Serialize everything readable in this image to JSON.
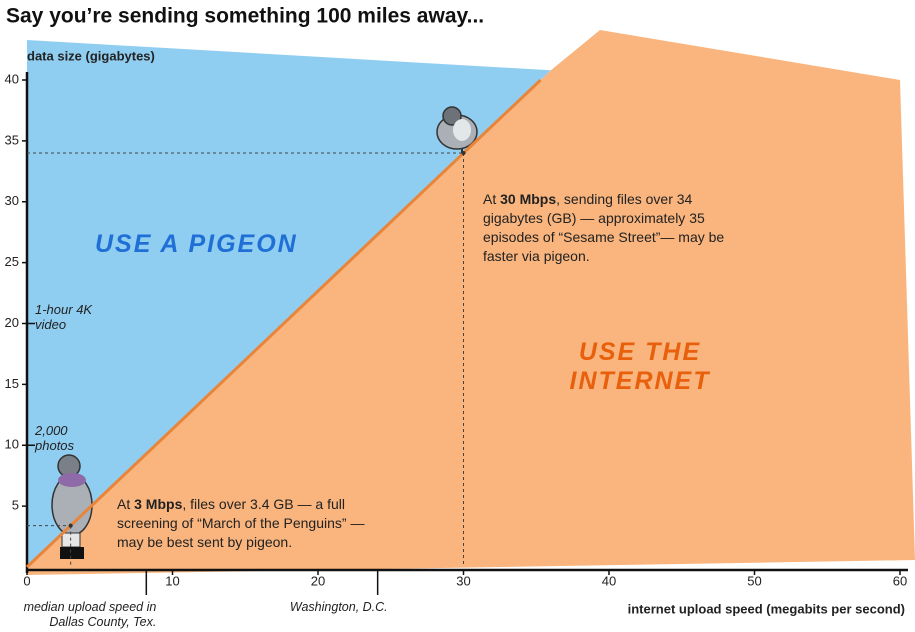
{
  "chart_data": {
    "type": "line",
    "title": "Say you’re sending something 100 miles away...",
    "y_label": "data size (gigabytes)",
    "x_label": "internet upload speed (megabits per second)",
    "xlim": [
      0,
      60
    ],
    "ylim": [
      0,
      40
    ],
    "xticks": [
      0,
      10,
      20,
      30,
      40,
      50,
      60
    ],
    "yticks": [
      5,
      10,
      15,
      20,
      25,
      30,
      35,
      40
    ],
    "series": [
      {
        "color": "#e8853a",
        "x": [
          0,
          3,
          30,
          35.3
        ],
        "values": [
          0,
          3.4,
          34,
          40
        ]
      }
    ],
    "regions": [
      {
        "label": "USE A PIGEON",
        "color": "#7cc6ef",
        "text_color": "#1f6fd6"
      },
      {
        "label": "USE THE INTERNET",
        "color": "#f8a866",
        "text_color": "#e8600c"
      }
    ],
    "y_markers": [
      {
        "value": 20,
        "label": "1-hour 4K video"
      },
      {
        "value": 10,
        "label": "2,000 photos"
      }
    ],
    "x_markers": [
      {
        "value": 8.2,
        "label": "median upload speed in Dallas County, Tex."
      },
      {
        "value": 24.1,
        "label": "Washington, D.C."
      }
    ],
    "callouts": [
      {
        "x": 3,
        "y": 3.4,
        "parts": [
          "At ",
          "3 Mbps",
          ", files over 3.4 GB — a full screening of “March of the Penguins” — may be best sent by pigeon."
        ]
      },
      {
        "x": 30,
        "y": 34,
        "parts": [
          "At ",
          "30 Mbps",
          ", sending files over 34 gigabytes (GB) — approximately 35 episodes of “Sesame Street”— may be faster via pigeon."
        ]
      }
    ]
  }
}
